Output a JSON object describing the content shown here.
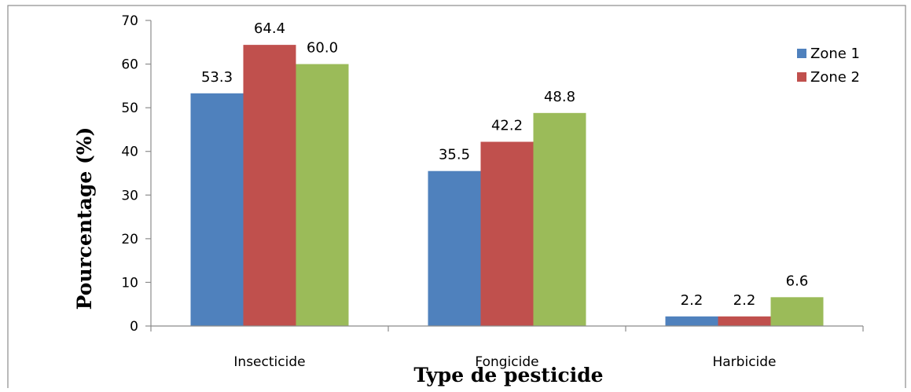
{
  "chart_data": {
    "type": "bar",
    "title": "",
    "xlabel": "Type de pesticide",
    "ylabel": "Pourcentage (%)",
    "ylim": [
      0,
      70
    ],
    "yticks": [
      0,
      10,
      20,
      30,
      40,
      50,
      60,
      70
    ],
    "categories": [
      "Insecticide",
      "Fongicide",
      "Harbicide"
    ],
    "series": [
      {
        "name": "Zone 1",
        "color": "#4f81bd",
        "values": [
          53.3,
          35.5,
          2.2
        ]
      },
      {
        "name": "Zone 2",
        "color": "#c0504d",
        "values": [
          64.4,
          42.2,
          2.2
        ]
      },
      {
        "color": "#9bbb59",
        "values": [
          60.0,
          48.8,
          6.6
        ]
      }
    ],
    "legend": "top-right",
    "grid": false
  }
}
